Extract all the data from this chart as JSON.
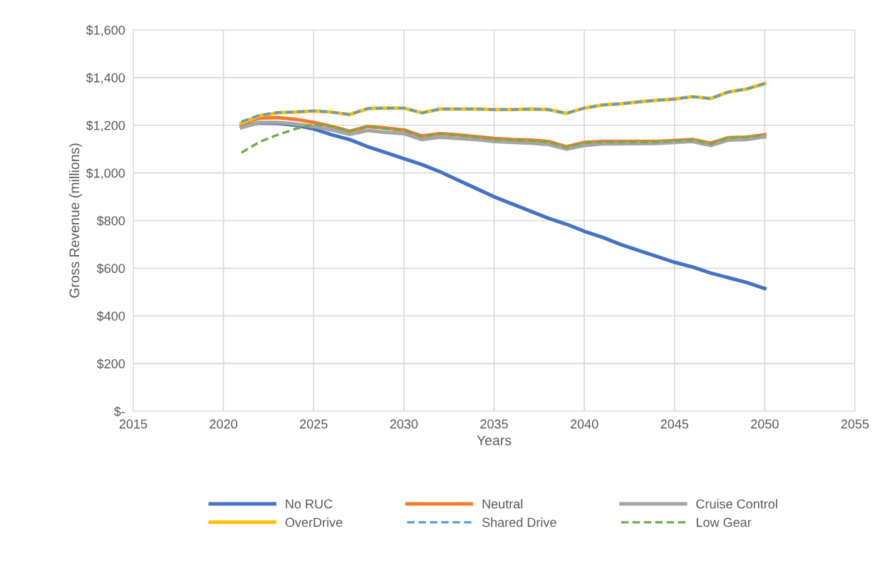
{
  "chart_data": {
    "type": "line",
    "xlabel": "Years",
    "ylabel": "Gross Revenue (millions)",
    "x": [
      2021,
      2022,
      2023,
      2024,
      2025,
      2026,
      2027,
      2028,
      2029,
      2030,
      2031,
      2032,
      2033,
      2034,
      2035,
      2036,
      2037,
      2038,
      2039,
      2040,
      2041,
      2042,
      2043,
      2044,
      2045,
      2046,
      2047,
      2048,
      2049,
      2050
    ],
    "series": [
      {
        "name": "No RUC",
        "color": "#4472c4",
        "line_style": "solid",
        "values": [
          1195,
          1210,
          1208,
          1200,
          1185,
          1160,
          1140,
          1110,
          1085,
          1060,
          1035,
          1005,
          970,
          935,
          900,
          870,
          840,
          810,
          785,
          755,
          730,
          700,
          675,
          650,
          625,
          605,
          580,
          560,
          540,
          515
        ]
      },
      {
        "name": "Neutral",
        "color": "#ed7d31",
        "line_style": "solid",
        "values": [
          1205,
          1230,
          1232,
          1225,
          1212,
          1195,
          1175,
          1195,
          1188,
          1180,
          1155,
          1165,
          1160,
          1152,
          1145,
          1140,
          1138,
          1132,
          1110,
          1128,
          1132,
          1132,
          1132,
          1132,
          1136,
          1140,
          1125,
          1148,
          1150,
          1160
        ]
      },
      {
        "name": "Cruise Control",
        "color": "#a5a5a5",
        "line_style": "solid",
        "values": [
          1190,
          1212,
          1212,
          1205,
          1195,
          1180,
          1162,
          1178,
          1170,
          1165,
          1140,
          1150,
          1145,
          1140,
          1132,
          1128,
          1125,
          1120,
          1100,
          1115,
          1122,
          1122,
          1123,
          1124,
          1128,
          1132,
          1115,
          1138,
          1140,
          1152
        ]
      },
      {
        "name": "OverDrive",
        "color": "#ffc000",
        "line_style": "solid",
        "values": [
          1210,
          1240,
          1252,
          1255,
          1260,
          1255,
          1245,
          1270,
          1272,
          1272,
          1252,
          1268,
          1268,
          1268,
          1266,
          1266,
          1268,
          1266,
          1250,
          1272,
          1285,
          1290,
          1298,
          1305,
          1310,
          1320,
          1312,
          1340,
          1352,
          1375
        ]
      },
      {
        "name": "Shared Drive",
        "color": "#5b9bd5",
        "line_style": "dashed",
        "values": [
          1215,
          1242,
          1254,
          1256,
          1260,
          1255,
          1245,
          1270,
          1272,
          1272,
          1252,
          1268,
          1268,
          1268,
          1266,
          1266,
          1268,
          1266,
          1250,
          1272,
          1285,
          1290,
          1298,
          1305,
          1310,
          1320,
          1312,
          1340,
          1352,
          1375
        ]
      },
      {
        "name": "Low Gear",
        "color": "#70ad47",
        "line_style": "dashed",
        "values": [
          1085,
          1130,
          1160,
          1185,
          1205,
          1195,
          1175,
          1195,
          1185,
          1178,
          1152,
          1163,
          1158,
          1150,
          1142,
          1138,
          1135,
          1130,
          1108,
          1127,
          1130,
          1130,
          1130,
          1130,
          1135,
          1138,
          1122,
          1148,
          1150,
          1160
        ]
      }
    ],
    "xlim": [
      2015,
      2055
    ],
    "xticks": [
      2015,
      2020,
      2025,
      2030,
      2035,
      2040,
      2045,
      2050,
      2055
    ],
    "ylim": [
      0,
      1600
    ],
    "yticks": [
      {
        "value": 0,
        "label": "$-"
      },
      {
        "value": 200,
        "label": "$200"
      },
      {
        "value": 400,
        "label": "$400"
      },
      {
        "value": 600,
        "label": "$600"
      },
      {
        "value": 800,
        "label": "$800"
      },
      {
        "value": 1000,
        "label": "$1,000"
      },
      {
        "value": 1200,
        "label": "$1,200"
      },
      {
        "value": 1400,
        "label": "$1,400"
      },
      {
        "value": 1600,
        "label": "$1,600"
      }
    ],
    "grid": true,
    "legend": "bottom",
    "marker": "none"
  }
}
